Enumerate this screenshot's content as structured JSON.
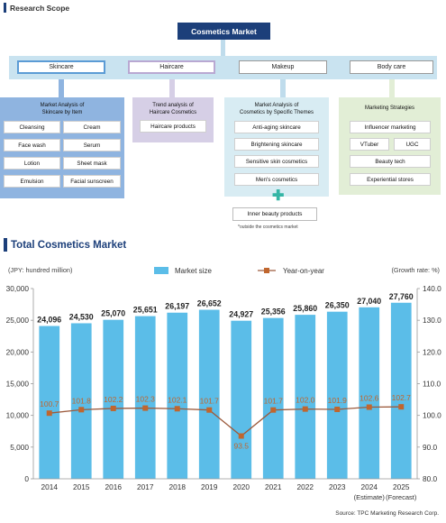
{
  "scope": {
    "heading": "Research Scope",
    "root": "Cosmetics Market",
    "categories": [
      "Skincare",
      "Haircare",
      "Makeup",
      "Body care"
    ],
    "groups": {
      "skincare": {
        "title_line1": "Market Analysis of",
        "title_line2": "Skincare by Item",
        "items": [
          "Cleansing",
          "Cream",
          "Face wash",
          "Serum",
          "Lotion",
          "Sheet mask",
          "Emulsion",
          "Facial sunscreen"
        ]
      },
      "haircare": {
        "title_line1": "Trend analysis of",
        "title_line2": "Haircare Cosmetics",
        "items": [
          "Haircare products"
        ]
      },
      "themes": {
        "title_line1": "Market Analysis of",
        "title_line2": "Cosmetics by Specific Themes",
        "items": [
          "Anti-aging skincare",
          "Brightening skincare",
          "Sensitive skin cosmetics",
          "Men's cosmetics"
        ]
      },
      "marketing": {
        "title": "Marketing Strategies",
        "items": [
          "Influencer marketing",
          "VTuber",
          "UGC",
          "Beauty tech",
          "Experiential stores"
        ]
      }
    },
    "inner_beauty": "Inner beauty products",
    "inner_note": "*outside the cosmetics market"
  },
  "total": {
    "heading": "Total Cosmetics Market",
    "source": "Source: TPC Marketing Research Corp."
  },
  "colors": {
    "navy": "#1c3f7a",
    "light_blue_band": "#c9e3f0",
    "skincare_group": "#8fb4e0",
    "haircare_group": "#d6cfe6",
    "themes_group": "#d8ecf3",
    "marketing_group": "#e2eed6",
    "bar": "#5bbde8",
    "line": "#9c5a3c",
    "marker": "#c0662e",
    "label_yoy": "#c0662e"
  },
  "chart_data": {
    "type": "bar",
    "categories": [
      "2014",
      "2015",
      "2016",
      "2017",
      "2018",
      "2019",
      "2020",
      "2021",
      "2022",
      "2023",
      "2024",
      "2025"
    ],
    "category_notes": {
      "2024": "(Estimate)",
      "2025": "(Forecast)"
    },
    "series": [
      {
        "name": "Market size",
        "type": "bar",
        "axis": "left",
        "values": [
          24096,
          24530,
          25070,
          25651,
          26197,
          26652,
          24927,
          25356,
          25860,
          26350,
          27040,
          27760
        ],
        "labels": [
          "24,096",
          "24,530",
          "25,070",
          "25,651",
          "26,197",
          "26,652",
          "24,927",
          "25,356",
          "25,860",
          "26,350",
          "27,040",
          "27,760"
        ]
      },
      {
        "name": "Year-on-year",
        "type": "line",
        "axis": "right",
        "values": [
          100.7,
          101.8,
          102.2,
          102.3,
          102.1,
          101.7,
          93.5,
          101.7,
          102.0,
          101.9,
          102.6,
          102.7
        ],
        "labels": [
          "100.7",
          "101.8",
          "102.2",
          "102.3",
          "102.1",
          "101.7",
          "93.5",
          "101.7",
          "102.0",
          "101.9",
          "102.6",
          "102.7"
        ]
      }
    ],
    "ylabel_left": "(JPY: hundred million)",
    "ylabel_right": "(Growth rate: %)",
    "ylim_left": [
      0,
      30000
    ],
    "ylim_right": [
      80.0,
      140.0
    ],
    "yticks_left": [
      "0",
      "5,000",
      "10,000",
      "15,000",
      "20,000",
      "25,000",
      "30,000"
    ],
    "yticks_right": [
      "80.0",
      "90.0",
      "100.0",
      "110.0",
      "120.0",
      "130.0",
      "140.0"
    ],
    "legend_position": "top",
    "grid": false
  }
}
